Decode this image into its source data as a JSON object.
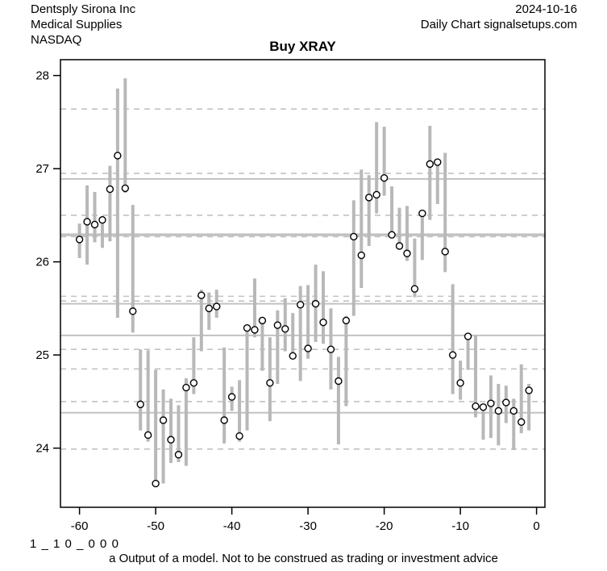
{
  "header": {
    "company": "Dentsply Sirona Inc",
    "sector": "Medical Supplies",
    "exchange": "NASDAQ",
    "date": "2024-10-16",
    "source": "Daily Chart signalsetups.com"
  },
  "title": "Buy XRAY",
  "footer": {
    "code": "1 _ 1 0 _ 0 0 0",
    "disclaimer": "a Output of a model. Not to be construed as trading or investment advice"
  },
  "chart_data": {
    "type": "bar",
    "subtype": "high-low-close-range-bars",
    "title": "Buy XRAY",
    "xlabel": "",
    "ylabel": "",
    "x_ticks": [
      -60,
      -50,
      -40,
      -30,
      -20,
      -10,
      0
    ],
    "y_ticks": [
      24,
      25,
      26,
      27,
      28
    ],
    "xlim": [
      -62.5,
      1.1
    ],
    "ylim": [
      23.365,
      28.17
    ],
    "grid_dashed": [
      27.64,
      26.95,
      26.5,
      26.27,
      25.63,
      25.58,
      25.06,
      24.85,
      24.5,
      23.99
    ],
    "grid_solid": [
      {
        "value": 26.89,
        "weight": 2
      },
      {
        "value": 26.29,
        "weight": 3.5
      },
      {
        "value": 25.55,
        "weight": 2
      },
      {
        "value": 25.21,
        "weight": 2
      },
      {
        "value": 24.38,
        "weight": 2
      }
    ],
    "colors": {
      "bar": "#b8b8b8",
      "grid": "#c2c2c2",
      "axis": "#000000",
      "marker_fill": "#ffffff",
      "marker_stroke": "#000000"
    },
    "series": {
      "days": [
        -60,
        -59,
        -58,
        -57,
        -56,
        -55,
        -54,
        -53,
        -52,
        -51,
        -50,
        -49,
        -48,
        -47,
        -46,
        -45,
        -44,
        -43,
        -42,
        -41,
        -40,
        -39,
        -38,
        -37,
        -36,
        -35,
        -34,
        -33,
        -32,
        -31,
        -30,
        -29,
        -28,
        -27,
        -26,
        -25,
        -24,
        -23,
        -22,
        -21,
        -20,
        -19,
        -18,
        -17,
        -16,
        -15,
        -14,
        -13,
        -12,
        -11,
        -10,
        -9,
        -8,
        -7,
        -6,
        -5,
        -4,
        -3,
        -2,
        -1
      ],
      "high": [
        26.41,
        26.82,
        26.75,
        26.49,
        27.03,
        27.86,
        27.97,
        26.61,
        25.06,
        25.05,
        24.84,
        24.63,
        24.53,
        24.46,
        24.75,
        25.19,
        25.7,
        25.67,
        25.7,
        25.08,
        24.66,
        24.73,
        25.32,
        25.82,
        25.41,
        25.19,
        25.48,
        25.61,
        25.45,
        25.74,
        25.75,
        25.97,
        25.9,
        25.5,
        24.98,
        25.42,
        26.66,
        26.99,
        26.93,
        27.5,
        27.45,
        26.81,
        26.58,
        26.6,
        26.25,
        26.53,
        27.46,
        27.1,
        27.17,
        25.76,
        24.94,
        25.22,
        25.21,
        24.48,
        24.78,
        24.69,
        24.67,
        24.53,
        24.9,
        24.69
      ],
      "low": [
        26.04,
        25.97,
        26.21,
        26.15,
        26.22,
        25.4,
        26.74,
        25.24,
        24.19,
        24.07,
        23.6,
        23.62,
        23.84,
        23.85,
        23.81,
        24.58,
        25.04,
        25.27,
        25.4,
        24.05,
        24.4,
        24.07,
        24.19,
        25.19,
        24.83,
        24.29,
        24.69,
        25.04,
        24.96,
        24.72,
        24.96,
        25.14,
        25.12,
        24.63,
        24.04,
        24.45,
        25.42,
        25.72,
        26.17,
        26.52,
        26.71,
        26.29,
        26.16,
        26.01,
        25.62,
        26.02,
        26.45,
        26.62,
        25.89,
        24.58,
        24.52,
        24.84,
        24.33,
        24.09,
        24.11,
        24.03,
        24.27,
        23.98,
        24.16,
        24.19
      ],
      "close": [
        26.24,
        26.43,
        26.4,
        26.45,
        26.78,
        27.14,
        26.79,
        25.47,
        24.47,
        24.14,
        23.62,
        24.3,
        24.09,
        23.93,
        24.65,
        24.7,
        25.64,
        25.5,
        25.52,
        24.3,
        24.55,
        24.13,
        25.29,
        25.27,
        25.37,
        24.7,
        25.32,
        25.28,
        24.99,
        25.54,
        25.07,
        25.55,
        25.35,
        25.06,
        24.72,
        25.37,
        26.27,
        26.07,
        26.69,
        26.72,
        26.9,
        26.29,
        26.17,
        26.09,
        25.71,
        26.52,
        27.05,
        27.07,
        26.11,
        25.0,
        24.7,
        25.2,
        24.45,
        24.44,
        24.48,
        24.4,
        24.49,
        24.4,
        24.28,
        24.62
      ]
    }
  }
}
